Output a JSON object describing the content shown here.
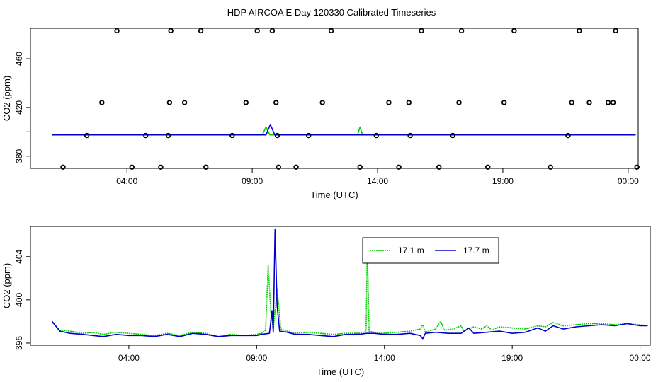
{
  "title": "HDP AIRCOA E  Day 120330  Calibrated Timeseries",
  "chart_data": [
    {
      "type": "scatter",
      "xlabel": "Time (UTC)",
      "ylabel": "CO2 (ppm)",
      "xticks": [
        "04:00",
        "09:00",
        "14:00",
        "19:00",
        "00:00"
      ],
      "yticks": [
        "380",
        "420",
        "460"
      ],
      "yticks_all": [
        "380",
        "400",
        "420",
        "440",
        "460"
      ],
      "xlim_hours": [
        0.15,
        24.4
      ],
      "ylim": [
        370,
        485
      ],
      "grid": false,
      "points": [
        [
          1.45,
          371
        ],
        [
          2.4,
          397
        ],
        [
          3.0,
          424
        ],
        [
          3.6,
          483
        ],
        [
          4.2,
          371
        ],
        [
          4.75,
          397
        ],
        [
          5.35,
          371
        ],
        [
          5.65,
          397
        ],
        [
          5.7,
          424
        ],
        [
          5.75,
          483
        ],
        [
          6.3,
          424
        ],
        [
          6.95,
          483
        ],
        [
          7.15,
          371
        ],
        [
          8.2,
          397
        ],
        [
          8.75,
          424
        ],
        [
          9.2,
          483
        ],
        [
          9.8,
          483
        ],
        [
          9.95,
          424
        ],
        [
          10.0,
          397
        ],
        [
          10.05,
          371
        ],
        [
          10.75,
          371
        ],
        [
          11.25,
          397
        ],
        [
          11.8,
          424
        ],
        [
          12.15,
          483
        ],
        [
          13.3,
          371
        ],
        [
          13.95,
          397
        ],
        [
          14.45,
          424
        ],
        [
          14.85,
          371
        ],
        [
          15.25,
          424
        ],
        [
          15.3,
          397
        ],
        [
          15.75,
          483
        ],
        [
          16.45,
          371
        ],
        [
          17.0,
          397
        ],
        [
          17.25,
          424
        ],
        [
          17.35,
          483
        ],
        [
          18.4,
          371
        ],
        [
          19.05,
          424
        ],
        [
          19.45,
          483
        ],
        [
          20.9,
          371
        ],
        [
          21.6,
          397
        ],
        [
          21.75,
          424
        ],
        [
          22.05,
          483
        ],
        [
          22.45,
          424
        ],
        [
          23.2,
          424
        ],
        [
          23.4,
          424
        ],
        [
          23.5,
          483
        ],
        [
          24.35,
          371
        ],
        [
          24.45,
          397
        ],
        [
          25.15,
          397
        ],
        [
          25.2,
          424
        ],
        [
          25.3,
          483
        ],
        [
          26.5,
          424
        ],
        [
          27.45,
          371
        ]
      ],
      "series": [
        {
          "color": "#00cc00",
          "values": [
            [
              1.0,
              397.5
            ],
            [
              9.4,
              397.5
            ],
            [
              9.55,
              404
            ],
            [
              9.7,
              397.5
            ],
            [
              13.2,
              397.5
            ],
            [
              13.3,
              404
            ],
            [
              13.4,
              397.5
            ],
            [
              24.3,
              397.5
            ]
          ]
        },
        {
          "color": "#0000cc",
          "values": [
            [
              1.0,
              397.5
            ],
            [
              9.55,
              397.5
            ],
            [
              9.72,
              406
            ],
            [
              9.9,
              397.5
            ],
            [
              24.3,
              397.5
            ]
          ]
        }
      ]
    },
    {
      "type": "line",
      "xlabel": "Time (UTC)",
      "ylabel": "CO2 (ppm)",
      "xticks": [
        "04:00",
        "09:00",
        "14:00",
        "19:00",
        "00:00"
      ],
      "yticks": [
        "396",
        "400",
        "404"
      ],
      "xlim_hours": [
        0.15,
        24.4
      ],
      "ylim": [
        395.8,
        406.8
      ],
      "grid": false,
      "legend_position": "top-right",
      "series": [
        {
          "name": "17.1 m",
          "color": "#00cc00",
          "dash": true,
          "values": [
            [
              1.0,
              397.9
            ],
            [
              1.3,
              397.2
            ],
            [
              1.7,
              397.1
            ],
            [
              2.2,
              396.9
            ],
            [
              2.6,
              397.0
            ],
            [
              3.0,
              396.8
            ],
            [
              3.5,
              397.0
            ],
            [
              4.0,
              396.9
            ],
            [
              4.5,
              396.8
            ],
            [
              5.0,
              396.7
            ],
            [
              5.5,
              396.9
            ],
            [
              6.0,
              396.7
            ],
            [
              6.5,
              397.0
            ],
            [
              7.0,
              396.9
            ],
            [
              7.5,
              396.6
            ],
            [
              8.0,
              396.8
            ],
            [
              8.5,
              396.7
            ],
            [
              9.0,
              396.8
            ],
            [
              9.2,
              396.9
            ],
            [
              9.35,
              397.2
            ],
            [
              9.45,
              403.2
            ],
            [
              9.55,
              399.0
            ],
            [
              9.65,
              397.2
            ],
            [
              9.8,
              401.0
            ],
            [
              9.95,
              397.3
            ],
            [
              10.2,
              397.1
            ],
            [
              10.5,
              396.9
            ],
            [
              11.0,
              397.0
            ],
            [
              11.5,
              396.9
            ],
            [
              12.0,
              396.8
            ],
            [
              12.5,
              396.9
            ],
            [
              13.0,
              396.9
            ],
            [
              13.2,
              397.0
            ],
            [
              13.28,
              397.1
            ],
            [
              13.33,
              405.0
            ],
            [
              13.4,
              397.1
            ],
            [
              13.6,
              397.0
            ],
            [
              14.0,
              396.9
            ],
            [
              14.5,
              397.0
            ],
            [
              15.0,
              397.1
            ],
            [
              15.4,
              397.3
            ],
            [
              15.5,
              397.7
            ],
            [
              15.6,
              397.0
            ],
            [
              16.0,
              397.3
            ],
            [
              16.2,
              398.0
            ],
            [
              16.35,
              397.2
            ],
            [
              16.7,
              397.3
            ],
            [
              17.0,
              397.6
            ],
            [
              17.1,
              397.1
            ],
            [
              17.5,
              397.5
            ],
            [
              17.8,
              397.3
            ],
            [
              18.0,
              397.6
            ],
            [
              18.2,
              397.2
            ],
            [
              18.5,
              397.5
            ],
            [
              19.0,
              397.4
            ],
            [
              19.5,
              397.3
            ],
            [
              20.0,
              397.6
            ],
            [
              20.3,
              397.5
            ],
            [
              20.6,
              397.9
            ],
            [
              21.0,
              397.6
            ],
            [
              21.5,
              397.7
            ],
            [
              22.0,
              397.8
            ],
            [
              22.5,
              397.8
            ],
            [
              23.0,
              397.7
            ],
            [
              23.5,
              397.8
            ],
            [
              24.0,
              397.7
            ],
            [
              24.3,
              397.6
            ]
          ]
        },
        {
          "name": "17.7 m",
          "color": "#0000cc",
          "dash": false,
          "values": [
            [
              1.0,
              398.0
            ],
            [
              1.3,
              397.1
            ],
            [
              1.7,
              396.9
            ],
            [
              2.2,
              396.8
            ],
            [
              2.6,
              396.7
            ],
            [
              3.0,
              396.6
            ],
            [
              3.5,
              396.8
            ],
            [
              4.0,
              396.7
            ],
            [
              4.5,
              396.7
            ],
            [
              5.0,
              396.6
            ],
            [
              5.5,
              396.8
            ],
            [
              6.0,
              396.6
            ],
            [
              6.5,
              396.9
            ],
            [
              7.0,
              396.8
            ],
            [
              7.5,
              396.6
            ],
            [
              8.0,
              396.7
            ],
            [
              8.5,
              396.7
            ],
            [
              9.0,
              396.7
            ],
            [
              9.2,
              396.8
            ],
            [
              9.5,
              396.9
            ],
            [
              9.6,
              399.0
            ],
            [
              9.65,
              397.0
            ],
            [
              9.72,
              406.5
            ],
            [
              9.8,
              399.5
            ],
            [
              9.9,
              397.1
            ],
            [
              10.2,
              397.0
            ],
            [
              10.5,
              396.8
            ],
            [
              11.0,
              396.8
            ],
            [
              11.5,
              396.7
            ],
            [
              12.0,
              396.6
            ],
            [
              12.5,
              396.8
            ],
            [
              13.0,
              396.8
            ],
            [
              13.3,
              396.9
            ],
            [
              13.6,
              396.9
            ],
            [
              14.0,
              396.8
            ],
            [
              14.5,
              396.8
            ],
            [
              15.0,
              396.9
            ],
            [
              15.4,
              396.7
            ],
            [
              15.5,
              396.4
            ],
            [
              15.6,
              396.9
            ],
            [
              16.0,
              397.0
            ],
            [
              16.5,
              396.9
            ],
            [
              17.0,
              396.9
            ],
            [
              17.3,
              397.4
            ],
            [
              17.5,
              396.9
            ],
            [
              18.0,
              397.0
            ],
            [
              18.5,
              397.1
            ],
            [
              19.0,
              396.9
            ],
            [
              19.5,
              397.0
            ],
            [
              20.0,
              397.4
            ],
            [
              20.3,
              397.1
            ],
            [
              20.6,
              397.6
            ],
            [
              21.0,
              397.3
            ],
            [
              21.5,
              397.5
            ],
            [
              22.0,
              397.6
            ],
            [
              22.5,
              397.7
            ],
            [
              23.0,
              397.6
            ],
            [
              23.5,
              397.8
            ],
            [
              24.0,
              397.6
            ],
            [
              24.3,
              397.6
            ]
          ]
        }
      ]
    }
  ]
}
